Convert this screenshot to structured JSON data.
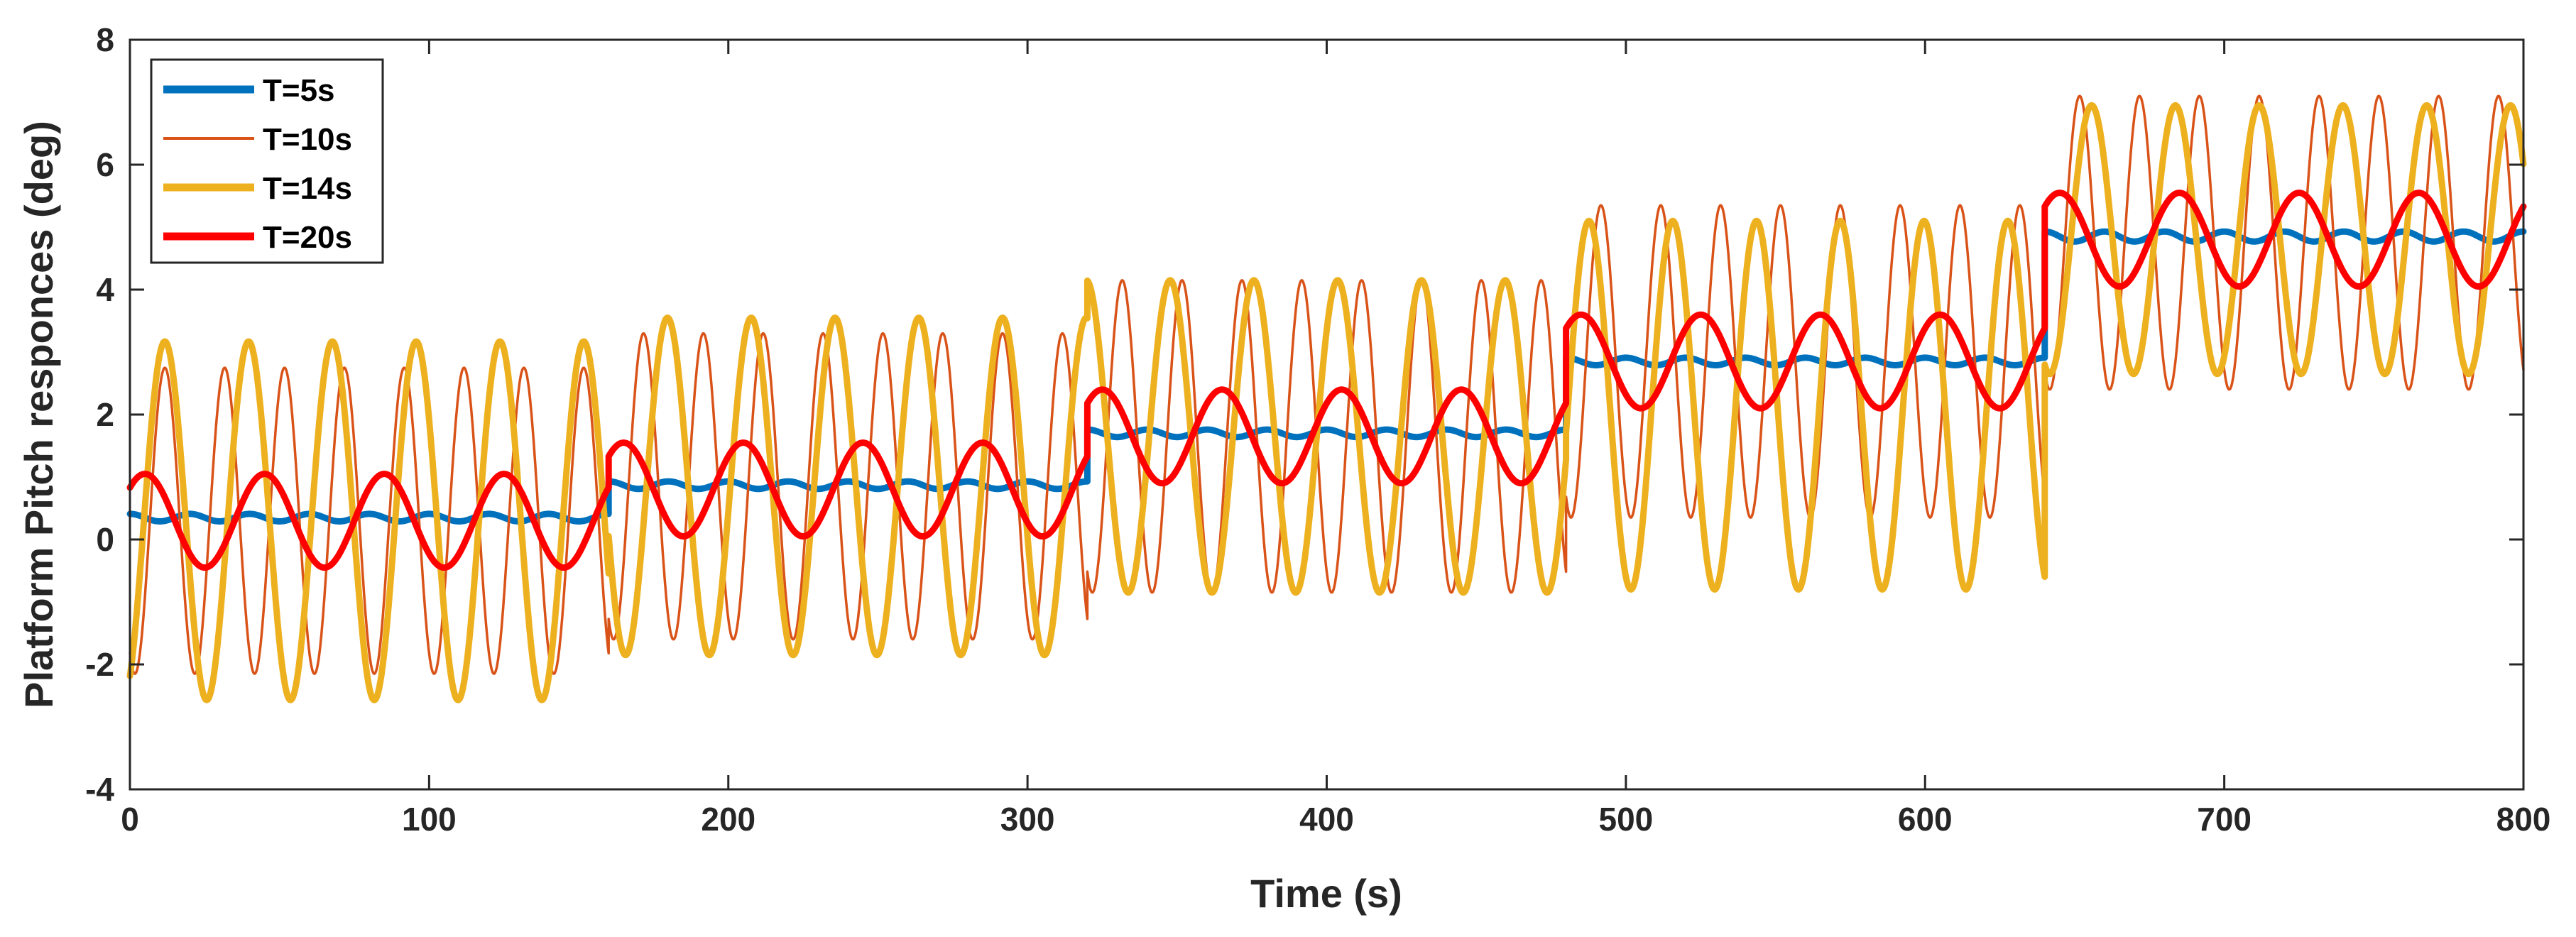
{
  "chart_data": {
    "type": "line",
    "title": "",
    "xlabel": "Time (s)",
    "ylabel": "Platform Pitch responces (deg)",
    "xlim": [
      0,
      800
    ],
    "ylim": [
      -4,
      8
    ],
    "xticks": [
      0,
      100,
      200,
      300,
      400,
      500,
      600,
      700,
      800
    ],
    "yticks": [
      -4,
      -2,
      0,
      2,
      4,
      6,
      8
    ],
    "grid": false,
    "legend_location": "top-left",
    "segment_boundaries": [
      0,
      160,
      320,
      480,
      640,
      800
    ],
    "series": [
      {
        "name": "T=5s",
        "color": "#0072BD",
        "line_weight": "thick",
        "period_s": 20,
        "segment_means": [
          0.35,
          0.87,
          1.7,
          2.85,
          4.85
        ],
        "segment_amplitudes": [
          0.06,
          0.06,
          0.06,
          0.06,
          0.08
        ],
        "start_phase_deg": 90
      },
      {
        "name": "T=10s",
        "color": "#D95319",
        "line_weight": "thin",
        "period_s": 20,
        "segment_means": [
          0.3,
          0.85,
          1.65,
          2.85,
          4.75
        ],
        "segment_amplitudes": [
          2.45,
          2.45,
          2.5,
          2.5,
          2.35
        ],
        "start_phase_deg": 240
      },
      {
        "name": "T=14s",
        "color": "#EDB120",
        "line_weight": "thick",
        "period_s": 28,
        "segment_means": [
          0.3,
          0.85,
          1.65,
          2.15,
          4.8
        ],
        "segment_amplitudes": [
          2.87,
          2.7,
          2.5,
          2.95,
          2.15
        ],
        "start_phase_deg": 300
      },
      {
        "name": "T=20s",
        "color": "#FF0000",
        "line_weight": "thick",
        "period_s": 40,
        "segment_means": [
          0.3,
          0.8,
          1.65,
          2.85,
          4.8
        ],
        "segment_amplitudes": [
          0.75,
          0.75,
          0.75,
          0.75,
          0.75
        ],
        "start_phase_deg": 45
      }
    ]
  }
}
